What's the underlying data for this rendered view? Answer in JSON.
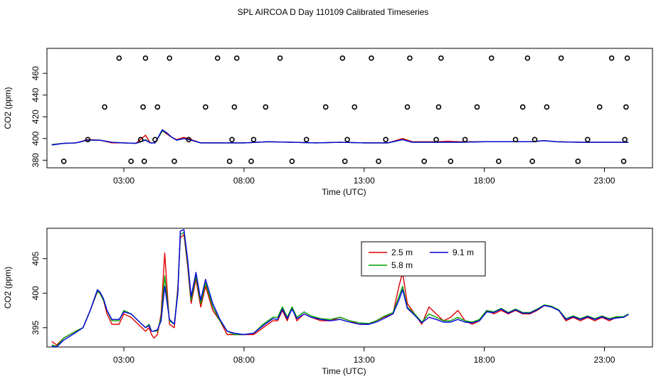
{
  "title": "SPL AIRCOA D  Day 110109  Calibrated Timeseries",
  "chart_data": [
    {
      "type": "line",
      "panel": "top",
      "xlabel": "Time (UTC)",
      "ylabel": "CO2 (ppm)",
      "x_unit": "hours UTC",
      "xlim": [
        -0.2,
        25.0
      ],
      "ylim": [
        373,
        483
      ],
      "x_ticks": [
        3,
        8,
        13,
        18,
        23
      ],
      "x_tick_labels": [
        "03:00",
        "08:00",
        "13:00",
        "18:00",
        "23:00"
      ],
      "y_ticks": [
        380,
        400,
        420,
        440,
        460
      ],
      "y_tick_labels": [
        "380",
        "400",
        "420",
        "440",
        "460"
      ],
      "series": [
        {
          "color": "#e00000",
          "x": [
            0,
            0.5,
            1,
            1.5,
            2,
            2.5,
            3,
            3.5,
            3.9,
            4.1,
            4.3,
            4.6,
            4.8,
            5.0,
            5.2,
            5.5,
            5.8,
            6.2,
            7,
            8,
            9,
            10,
            11,
            12,
            13,
            14,
            14.6,
            15,
            16,
            16.5,
            17,
            18,
            19,
            20,
            20.5,
            21,
            22,
            23,
            24
          ],
          "y": [
            394.5,
            395.5,
            396,
            399,
            398.5,
            396,
            396,
            395.5,
            403,
            396,
            396,
            407,
            404,
            401,
            399,
            401,
            399,
            396,
            396,
            396,
            397,
            396.5,
            396,
            396.5,
            396,
            396,
            400,
            397,
            397,
            397.5,
            397,
            397,
            397,
            397,
            398,
            397,
            396.5,
            396.5,
            396.5
          ]
        },
        {
          "color": "#00a000",
          "x": [
            0,
            0.5,
            1,
            1.5,
            2,
            2.5,
            3,
            3.5,
            3.9,
            4.1,
            4.3,
            4.6,
            4.8,
            5.0,
            5.2,
            5.5,
            5.8,
            6.2,
            7,
            8,
            9,
            10,
            11,
            12,
            13,
            14,
            14.6,
            15,
            16,
            16.5,
            17,
            18,
            19,
            20,
            20.5,
            21,
            22,
            23,
            24
          ],
          "y": [
            394.5,
            395.5,
            396,
            398.5,
            398.5,
            396.5,
            396,
            395.5,
            399,
            396,
            396,
            407,
            405,
            401,
            398.5,
            400,
            398.5,
            396,
            396,
            396,
            397,
            396.5,
            396,
            396.5,
            396,
            396,
            399,
            396.5,
            396.5,
            396.5,
            396.5,
            397,
            397,
            397,
            398,
            397,
            396.5,
            396.5,
            396.5
          ]
        },
        {
          "color": "#0000e0",
          "x": [
            0,
            0.5,
            1,
            1.5,
            2,
            2.5,
            3,
            3.5,
            3.9,
            4.1,
            4.3,
            4.6,
            4.8,
            5.0,
            5.2,
            5.5,
            5.8,
            6.2,
            7,
            8,
            9,
            10,
            11,
            12,
            13,
            14,
            14.6,
            15,
            16,
            16.5,
            17,
            18,
            19,
            20,
            20.5,
            21,
            22,
            23,
            24
          ],
          "y": [
            394,
            395.5,
            396,
            398.5,
            398.5,
            396.5,
            396,
            395.5,
            398.5,
            396,
            396,
            408,
            405,
            401,
            398.5,
            400,
            398.5,
            396,
            396,
            396,
            397,
            396.5,
            396,
            396.5,
            396,
            396,
            399,
            396.5,
            396.5,
            396.5,
            396.5,
            397,
            397,
            397,
            398,
            397,
            396.5,
            396.5,
            396.5
          ]
        }
      ],
      "points": {
        "marker": "open-circle",
        "x": [
          0.5,
          1.5,
          2.2,
          2.8,
          3.3,
          3.7,
          3.8,
          3.9,
          3.85,
          4.3,
          4.4,
          4.9,
          5.1,
          5.7,
          6.4,
          6.9,
          7.4,
          7.5,
          7.6,
          7.7,
          8.3,
          8.4,
          8.9,
          9.5,
          10,
          10.6,
          11.4,
          12.1,
          12.2,
          12.3,
          12.6,
          13.3,
          13.6,
          13.9,
          14.8,
          14.9,
          15.5,
          16.0,
          16.1,
          16.2,
          16.6,
          17.2,
          17.7,
          18.3,
          18.6,
          19.3,
          19.6,
          19.8,
          20.0,
          20.1,
          20.6,
          21.2,
          21.9,
          22.3,
          22.8,
          23.3,
          23.8,
          23.85,
          23.9,
          23.95
        ]
      }
    },
    {
      "type": "line",
      "panel": "bottom",
      "xlabel": "Time (UTC)",
      "ylabel": "CO2 (ppm)",
      "x_unit": "hours UTC",
      "xlim": [
        -0.2,
        25.0
      ],
      "ylim": [
        392.2,
        409.4
      ],
      "x_ticks": [
        3,
        8,
        13,
        18,
        23
      ],
      "x_tick_labels": [
        "03:00",
        "08:00",
        "13:00",
        "18:00",
        "23:00"
      ],
      "y_ticks": [
        395,
        400,
        405
      ],
      "y_tick_labels": [
        "395",
        "400",
        "405"
      ],
      "legend": {
        "placement": "top-center",
        "entries": [
          "2.5 m",
          "5.8 m",
          "9.1 m"
        ]
      },
      "series": [
        {
          "name": "2.5 m",
          "color": "#e00000",
          "x": [
            0,
            0.2,
            0.5,
            1.0,
            1.3,
            1.6,
            1.9,
            2.0,
            2.15,
            2.3,
            2.5,
            2.8,
            3.0,
            3.3,
            3.6,
            3.9,
            4.05,
            4.15,
            4.25,
            4.4,
            4.55,
            4.7,
            4.9,
            5.1,
            5.25,
            5.35,
            5.5,
            5.65,
            5.8,
            6.0,
            6.2,
            6.4,
            6.7,
            7.0,
            7.3,
            7.6,
            8.0,
            8.4,
            8.8,
            9.2,
            9.4,
            9.6,
            9.8,
            10.0,
            10.2,
            10.5,
            10.8,
            11.2,
            11.6,
            12.0,
            12.4,
            12.8,
            13.2,
            13.5,
            13.8,
            14.2,
            14.45,
            14.6,
            14.8,
            15.1,
            15.4,
            15.7,
            16.0,
            16.3,
            16.6,
            16.9,
            17.2,
            17.5,
            17.8,
            18.1,
            18.4,
            18.7,
            19.0,
            19.3,
            19.6,
            19.9,
            20.2,
            20.5,
            20.8,
            21.1,
            21.4,
            21.7,
            22.0,
            22.3,
            22.6,
            22.9,
            23.2,
            23.5,
            23.8,
            24.0
          ],
          "y": [
            393,
            392.5,
            393.5,
            394.5,
            395,
            397.5,
            400.2,
            400,
            399,
            397,
            395.5,
            395.5,
            397,
            396.5,
            395.5,
            394.5,
            395,
            394,
            393.5,
            394,
            397,
            405.8,
            395.5,
            395,
            401,
            408,
            408.5,
            404,
            398.5,
            402,
            398,
            401,
            397.5,
            396,
            394,
            394,
            394,
            394,
            395,
            396,
            396,
            397.5,
            396,
            398,
            396,
            397,
            396.5,
            396,
            396,
            396.5,
            396,
            395.5,
            395.5,
            396,
            396.5,
            397,
            401,
            403,
            398.5,
            397,
            395.5,
            398,
            397,
            396,
            396.5,
            397.5,
            396,
            395.5,
            396,
            397.5,
            397,
            397.5,
            397,
            397.5,
            397,
            397,
            397.5,
            398.2,
            398,
            397.5,
            396,
            396.5,
            396,
            396.5,
            396,
            396.5,
            396,
            396.5,
            396.5,
            397
          ]
        },
        {
          "name": "5.8 m",
          "color": "#00a000",
          "x": [
            0,
            0.2,
            0.5,
            1.0,
            1.3,
            1.6,
            1.9,
            2.0,
            2.15,
            2.3,
            2.5,
            2.8,
            3.0,
            3.3,
            3.6,
            3.9,
            4.05,
            4.15,
            4.25,
            4.4,
            4.55,
            4.7,
            4.9,
            5.1,
            5.25,
            5.35,
            5.5,
            5.65,
            5.8,
            6.0,
            6.2,
            6.4,
            6.7,
            7.0,
            7.3,
            7.6,
            8.0,
            8.4,
            8.8,
            9.2,
            9.4,
            9.6,
            9.8,
            10.0,
            10.2,
            10.5,
            10.8,
            11.2,
            11.6,
            12.0,
            12.4,
            12.8,
            13.2,
            13.5,
            13.8,
            14.2,
            14.45,
            14.6,
            14.8,
            15.1,
            15.4,
            15.7,
            16.0,
            16.3,
            16.6,
            16.9,
            17.2,
            17.5,
            17.8,
            18.1,
            18.4,
            18.7,
            19.0,
            19.3,
            19.6,
            19.9,
            20.2,
            20.5,
            20.8,
            21.1,
            21.4,
            21.7,
            22.0,
            22.3,
            22.6,
            22.9,
            23.2,
            23.5,
            23.8,
            24.0
          ],
          "y": [
            392.5,
            392.3,
            393.5,
            394.5,
            395,
            397.5,
            400.3,
            400,
            399,
            397.5,
            396,
            396,
            397.5,
            397,
            396,
            395,
            395.5,
            394.5,
            394.5,
            394.5,
            396.5,
            402.5,
            396,
            395.5,
            400.5,
            408.5,
            408.8,
            404.5,
            399,
            402.5,
            398.5,
            401.5,
            398,
            396,
            394.5,
            394,
            394,
            394.2,
            395.5,
            396.5,
            396.5,
            398,
            396.5,
            398,
            396.5,
            397.3,
            396.7,
            396.3,
            396.2,
            396.5,
            396,
            395.7,
            395.6,
            396,
            396.6,
            397.2,
            399.5,
            401,
            398,
            397,
            395.8,
            397,
            396.5,
            396,
            396,
            396.5,
            396,
            395.8,
            396.2,
            397.5,
            397.3,
            397.8,
            397.2,
            397.7,
            397.2,
            397.2,
            397.7,
            398.3,
            398.1,
            397.6,
            396.3,
            396.7,
            396.3,
            396.7,
            396.3,
            396.7,
            396.3,
            396.6,
            396.6,
            397
          ]
        },
        {
          "name": "9.1 m",
          "color": "#0000e0",
          "x": [
            0,
            0.2,
            0.5,
            1.0,
            1.3,
            1.6,
            1.9,
            2.0,
            2.15,
            2.3,
            2.5,
            2.8,
            3.0,
            3.3,
            3.6,
            3.9,
            4.05,
            4.15,
            4.25,
            4.4,
            4.55,
            4.7,
            4.9,
            5.1,
            5.25,
            5.35,
            5.5,
            5.65,
            5.8,
            6.0,
            6.2,
            6.4,
            6.7,
            7.0,
            7.3,
            7.6,
            8.0,
            8.4,
            8.8,
            9.2,
            9.4,
            9.6,
            9.8,
            10.0,
            10.2,
            10.5,
            10.8,
            11.2,
            11.6,
            12.0,
            12.4,
            12.8,
            13.2,
            13.5,
            13.8,
            14.2,
            14.45,
            14.6,
            14.8,
            15.1,
            15.4,
            15.7,
            16.0,
            16.3,
            16.6,
            16.9,
            17.2,
            17.5,
            17.8,
            18.1,
            18.4,
            18.7,
            19.0,
            19.3,
            19.6,
            19.9,
            20.2,
            20.5,
            20.8,
            21.1,
            21.4,
            21.7,
            22.0,
            22.3,
            22.6,
            22.9,
            23.2,
            23.5,
            23.8,
            24.0
          ],
          "y": [
            392.3,
            392.2,
            393.2,
            394.3,
            395,
            397.5,
            400.5,
            400.2,
            399.2,
            397.5,
            396.2,
            396.2,
            397.3,
            397,
            396,
            395,
            395.3,
            394.5,
            394.5,
            394.7,
            396,
            401,
            396.2,
            395.5,
            400,
            409,
            409.2,
            405,
            399.5,
            403,
            399,
            402,
            398.5,
            396.2,
            394.5,
            394.2,
            394,
            394.2,
            395.3,
            396.3,
            396.2,
            397.7,
            396.3,
            397.7,
            396.3,
            397,
            396.5,
            396.2,
            396,
            396.2,
            395.8,
            395.5,
            395.5,
            395.8,
            396.3,
            397,
            399,
            400.5,
            397.8,
            396.8,
            395.7,
            396.5,
            396.2,
            395.8,
            395.8,
            396.2,
            395.8,
            395.7,
            396,
            397.3,
            397.2,
            397.7,
            397.1,
            397.6,
            397.1,
            397.1,
            397.6,
            398.2,
            398,
            397.5,
            396.2,
            396.6,
            396.2,
            396.6,
            396.2,
            396.6,
            396.2,
            396.4,
            396.5,
            396.9
          ]
        }
      ]
    }
  ]
}
